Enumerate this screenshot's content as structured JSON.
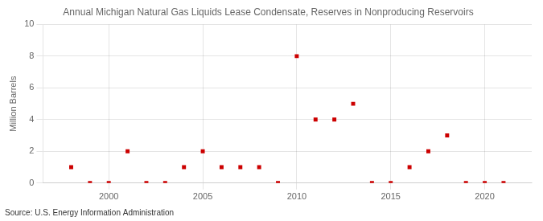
{
  "chart_data": {
    "type": "scatter",
    "title": "Annual Michigan Natural Gas Liquids Lease Condensate, Reserves in Nonproducing Reservoirs",
    "ylabel": "Million Barrels",
    "source": "Source: U.S. Energy Information Administration",
    "x": [
      1998,
      1999,
      2000,
      2001,
      2002,
      2003,
      2004,
      2005,
      2006,
      2007,
      2008,
      2009,
      2010,
      2011,
      2012,
      2013,
      2014,
      2015,
      2016,
      2017,
      2018,
      2019,
      2020,
      2021
    ],
    "values": [
      1,
      0,
      0,
      2,
      0,
      0,
      1,
      2,
      1,
      1,
      1,
      0,
      8,
      4,
      4,
      5,
      0,
      0,
      1,
      2,
      3,
      0,
      0,
      0
    ],
    "color": "#cc0000",
    "marker": "square",
    "xlim": [
      1996.5,
      2022.5
    ],
    "ylim": [
      0,
      10
    ],
    "xticks": [
      2000,
      2005,
      2010,
      2015,
      2020
    ],
    "yticks": [
      0,
      2,
      4,
      6,
      8,
      10
    ],
    "grid": true
  }
}
